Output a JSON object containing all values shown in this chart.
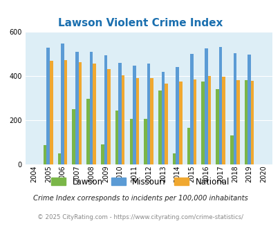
{
  "title": "Lawson Violent Crime Index",
  "title_color": "#1a6faf",
  "all_years": [
    2004,
    2005,
    2006,
    2007,
    2008,
    2009,
    2010,
    2011,
    2012,
    2013,
    2014,
    2015,
    2016,
    2017,
    2018,
    2019,
    2020
  ],
  "lawson_vals": [
    0,
    85,
    50,
    250,
    298,
    90,
    243,
    207,
    207,
    335,
    50,
    165,
    375,
    340,
    130,
    380,
    0
  ],
  "missouri_vals": [
    0,
    530,
    547,
    511,
    511,
    495,
    458,
    447,
    455,
    420,
    442,
    500,
    525,
    532,
    502,
    497,
    0
  ],
  "national_vals": [
    0,
    470,
    473,
    464,
    457,
    430,
    404,
    390,
    390,
    367,
    374,
    383,
    400,
    397,
    382,
    378,
    0
  ],
  "lawson_color": "#7ab648",
  "missouri_color": "#5b9bd5",
  "national_color": "#f0a830",
  "bg_color": "#ddeef6",
  "ylim": [
    0,
    600
  ],
  "yticks": [
    0,
    200,
    400,
    600
  ],
  "bar_width": 0.22,
  "footnote1": "Crime Index corresponds to incidents per 100,000 inhabitants",
  "footnote2": "© 2025 CityRating.com - https://www.cityrating.com/crime-statistics/",
  "footnote1_color": "#222222",
  "footnote2_color": "#888888"
}
